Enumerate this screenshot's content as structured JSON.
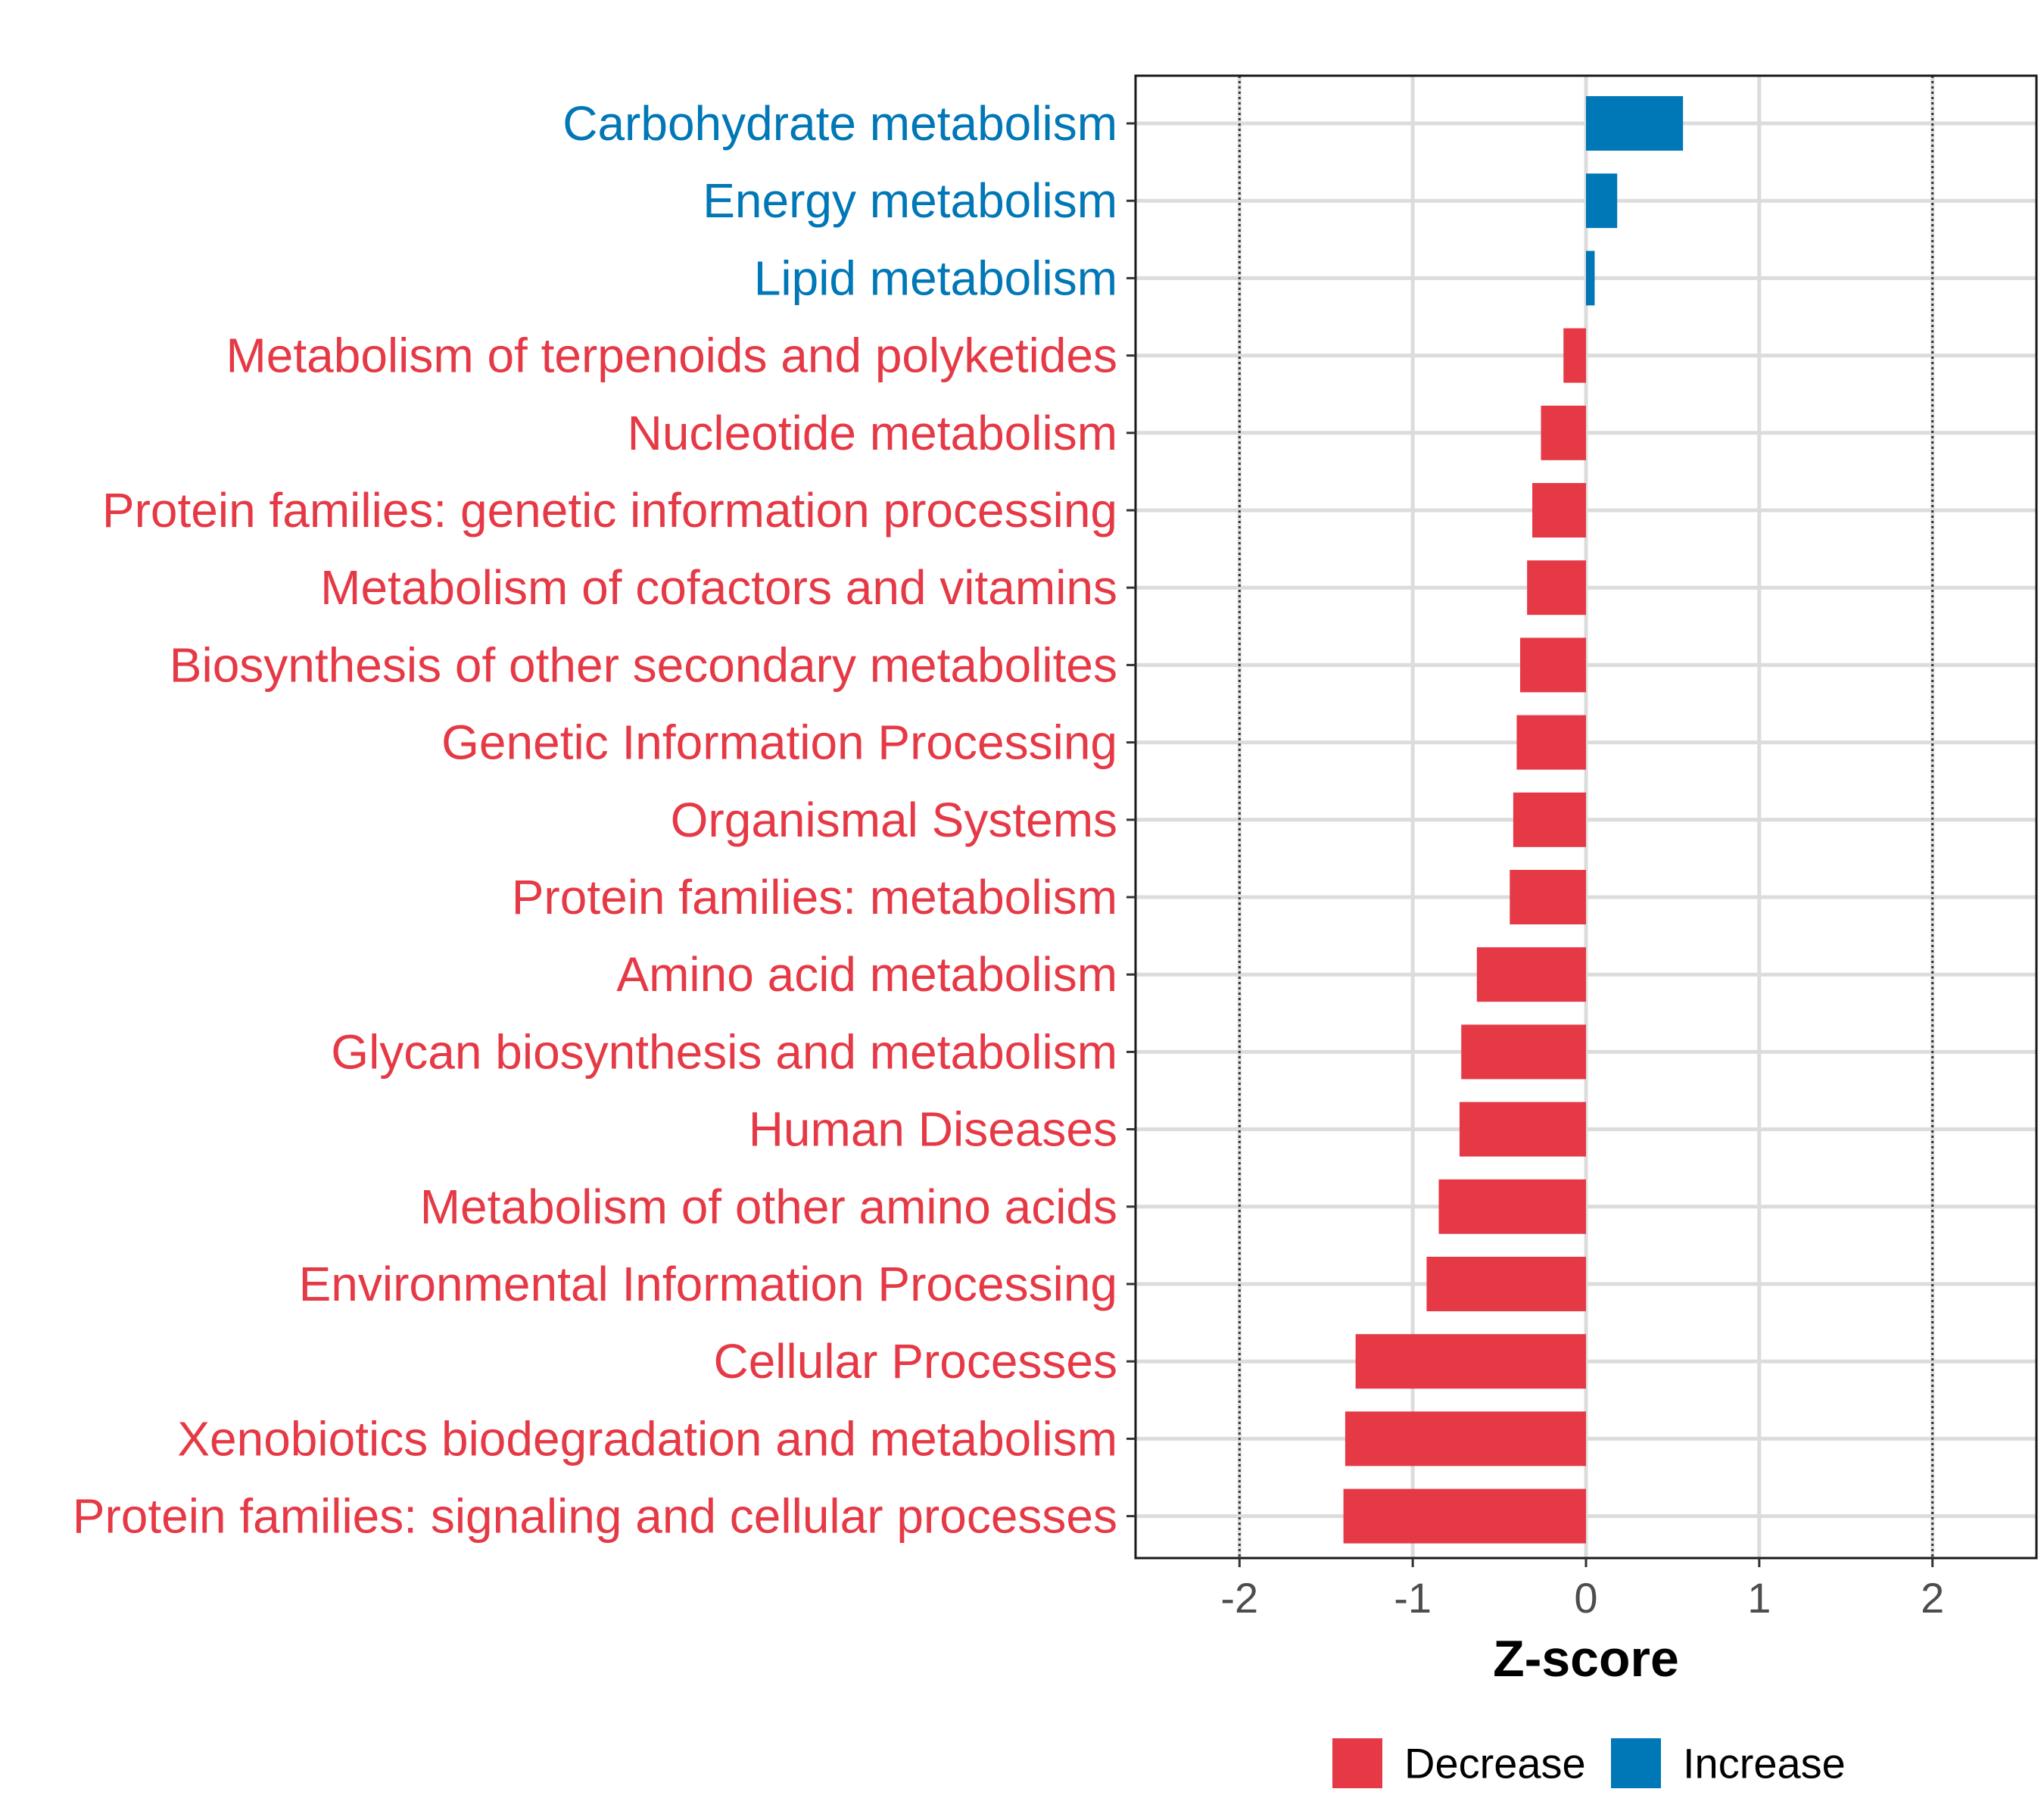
{
  "chart_data": {
    "type": "bar",
    "orientation": "horizontal",
    "categories": [
      "Carbohydrate metabolism",
      "Energy metabolism",
      "Lipid metabolism",
      "Metabolism of terpenoids and polyketides",
      "Nucleotide metabolism",
      "Protein families: genetic information processing",
      "Metabolism of cofactors and vitamins",
      "Biosynthesis of other secondary metabolites",
      "Genetic Information Processing",
      "Organismal Systems",
      "Protein families: metabolism",
      "Amino acid metabolism",
      "Glycan biosynthesis and metabolism",
      "Human Diseases",
      "Metabolism of other amino acids",
      "Environmental Information Processing",
      "Cellular Processes",
      "Xenobiotics biodegradation and metabolism",
      "Protein families: signaling and cellular processes"
    ],
    "values": [
      0.56,
      0.18,
      0.05,
      -0.13,
      -0.26,
      -0.31,
      -0.34,
      -0.38,
      -0.4,
      -0.42,
      -0.44,
      -0.63,
      -0.72,
      -0.73,
      -0.85,
      -0.92,
      -1.33,
      -1.39,
      -1.4
    ],
    "groups": [
      "Increase",
      "Increase",
      "Increase",
      "Decrease",
      "Decrease",
      "Decrease",
      "Decrease",
      "Decrease",
      "Decrease",
      "Decrease",
      "Decrease",
      "Decrease",
      "Decrease",
      "Decrease",
      "Decrease",
      "Decrease",
      "Decrease",
      "Decrease",
      "Decrease"
    ],
    "xlabel": "Z-score",
    "ylabel": "",
    "xlim": [
      -2.6,
      2.6
    ],
    "xticks": [
      -2,
      -1,
      0,
      1,
      2
    ],
    "reference_lines": [
      -2,
      2
    ],
    "grid": true,
    "legend": {
      "position": "bottom",
      "entries": [
        {
          "label": "Decrease",
          "color": "#E63946"
        },
        {
          "label": "Increase",
          "color": "#0077B6"
        }
      ]
    }
  }
}
